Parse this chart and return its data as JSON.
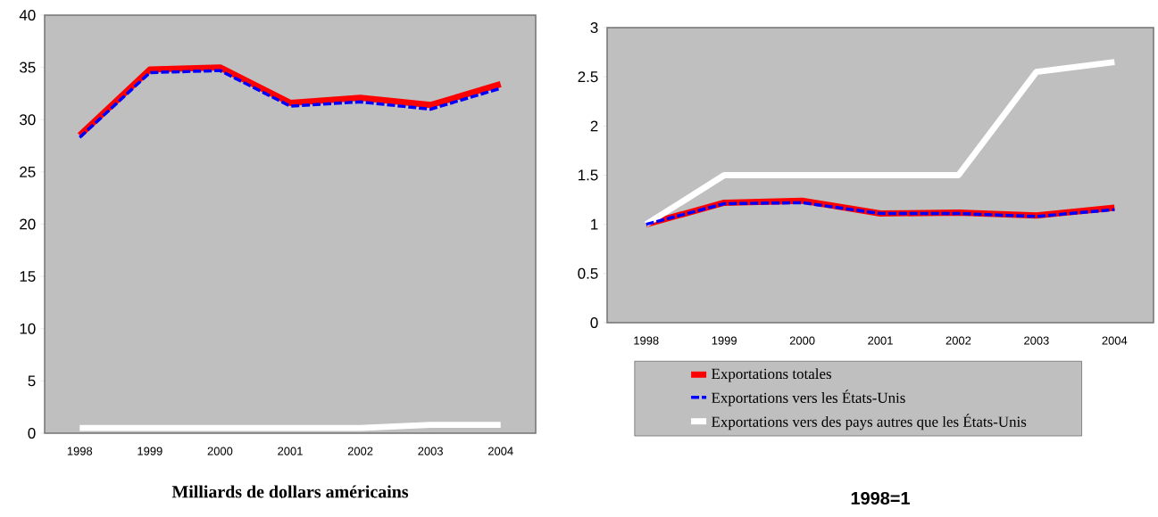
{
  "chart_data": [
    {
      "type": "line",
      "xlabel": "Milliards de dollars américains",
      "categories": [
        "1998",
        "1999",
        "2000",
        "2001",
        "2002",
        "2003",
        "2004"
      ],
      "ylim": [
        0,
        40
      ],
      "yticks": [
        0,
        5,
        10,
        15,
        20,
        25,
        30,
        35,
        40
      ],
      "grid": false,
      "legend": false,
      "series": [
        {
          "color": "#ff0000",
          "line_style": "solid",
          "values": [
            28.5,
            34.8,
            35.0,
            31.6,
            32.1,
            31.4,
            33.4
          ]
        },
        {
          "color": "#0000ff",
          "line_style": "dashed",
          "values": [
            28.3,
            34.5,
            34.7,
            31.3,
            31.7,
            31.0,
            33.0
          ]
        },
        {
          "color": "#ffffff",
          "line_style": "solid",
          "values": [
            0.5,
            0.5,
            0.5,
            0.5,
            0.5,
            0.8,
            0.8
          ]
        }
      ]
    },
    {
      "type": "line",
      "xlabel": "1998=1",
      "categories": [
        "1998",
        "1999",
        "2000",
        "2001",
        "2002",
        "2003",
        "2004"
      ],
      "ylim": [
        0,
        3
      ],
      "yticks": [
        0,
        0.5,
        1,
        1.5,
        2,
        2.5,
        3
      ],
      "grid": false,
      "legend": "bottom",
      "series": [
        {
          "name": "Exportations totales",
          "color": "#ff0000",
          "line_style": "solid",
          "values": [
            1.0,
            1.22,
            1.24,
            1.11,
            1.12,
            1.09,
            1.17
          ]
        },
        {
          "name": "Exportations vers les États-Unis",
          "color": "#0000ff",
          "line_style": "dashed",
          "values": [
            1.0,
            1.21,
            1.22,
            1.11,
            1.11,
            1.08,
            1.15
          ]
        },
        {
          "name": "Exportations vers des pays autres que les États-Unis",
          "color": "#ffffff",
          "line_style": "solid",
          "values": [
            1.0,
            1.5,
            1.5,
            1.5,
            1.5,
            2.55,
            2.65
          ]
        }
      ]
    }
  ]
}
